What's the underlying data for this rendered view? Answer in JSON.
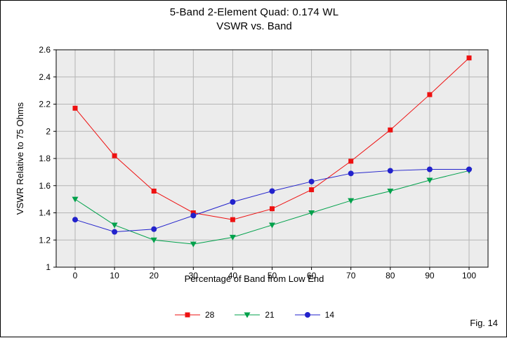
{
  "page": {
    "title": "5-Band 2-Element Quad: 0.174 WL",
    "subtitle": "VSWR vs. Band",
    "fig_label": "Fig. 14"
  },
  "chart_data": {
    "type": "line",
    "title": "5-Band 2-Element Quad: 0.174 WL",
    "subtitle": "VSWR vs. Band",
    "xlabel": "Percentage of Band from Low End",
    "ylabel": "VSWR Relative to 75 Ohms",
    "x": [
      0,
      10,
      20,
      30,
      40,
      50,
      60,
      70,
      80,
      90,
      100
    ],
    "xlim": [
      0,
      100
    ],
    "xtick_step": 10,
    "ylim": [
      1,
      2.6
    ],
    "ytick_step": 0.2,
    "grid": true,
    "legend_position": "bottom",
    "plot_bg": "#ececec",
    "grid_color": "#b5b5b5",
    "axis_color": "#000000",
    "series": [
      {
        "name": "28",
        "color": "#ee1111",
        "marker": "square",
        "values": [
          2.17,
          1.82,
          1.56,
          1.4,
          1.35,
          1.43,
          1.57,
          1.78,
          2.01,
          2.27,
          2.54
        ]
      },
      {
        "name": "21",
        "color": "#00a14b",
        "marker": "triangle-down",
        "values": [
          1.5,
          1.31,
          1.2,
          1.17,
          1.22,
          1.31,
          1.4,
          1.49,
          1.56,
          1.64,
          1.71
        ]
      },
      {
        "name": "14",
        "color": "#2222cc",
        "marker": "circle",
        "values": [
          1.35,
          1.26,
          1.28,
          1.38,
          1.48,
          1.56,
          1.63,
          1.69,
          1.71,
          1.72,
          1.72
        ]
      }
    ]
  }
}
